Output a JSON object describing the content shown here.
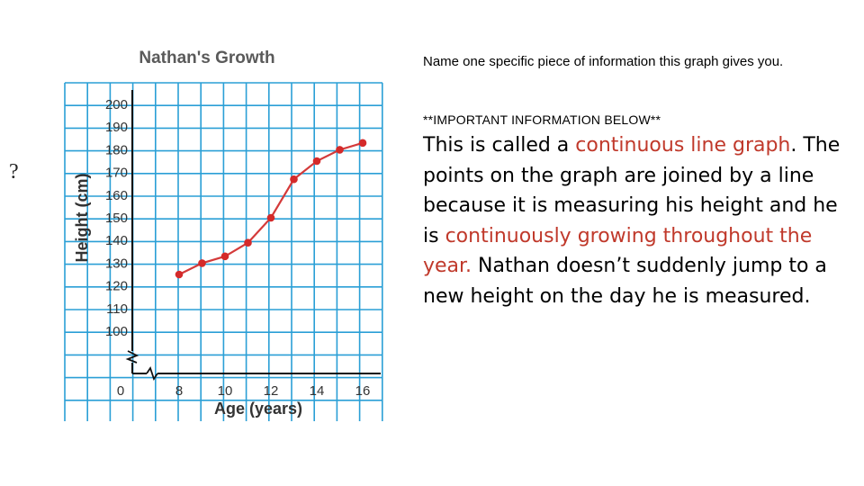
{
  "side_glyph": "?",
  "chart_data": {
    "type": "line",
    "title": "Nathan's Growth",
    "xlabel": "Age (years)",
    "ylabel": "Height (cm)",
    "x_ticks": [
      "0",
      "8",
      "10",
      "12",
      "14",
      "16"
    ],
    "y_ticks": [
      "100",
      "110",
      "120",
      "130",
      "140",
      "150",
      "160",
      "170",
      "180",
      "190",
      "200"
    ],
    "xlim": [
      7,
      17
    ],
    "ylim": [
      90,
      210
    ],
    "grid": true,
    "axis_breaks": true,
    "colors": {
      "grid": "#2a9fd6",
      "line": "#d43a3a",
      "marker": "#d42a2a"
    },
    "series": [
      {
        "x": [
          8,
          9,
          10,
          11,
          12,
          13,
          14,
          15,
          16
        ],
        "y": [
          125,
          130,
          133,
          139,
          150,
          167,
          175,
          180,
          183
        ]
      }
    ]
  },
  "text": {
    "question": "Name one specific piece of information this graph gives you.",
    "important": "**IMPORTANT INFORMATION BELOW**",
    "p1_a": "This is called a ",
    "p1_hl": "continuous line graph",
    "p1_b": ". The points on the graph are joined by a line because it is measuring his height and he is ",
    "p1_hl2": "continuously growing throughout the year.",
    "p1_c": " Nathan doesn’t suddenly jump to a new height on the day he is measured."
  }
}
